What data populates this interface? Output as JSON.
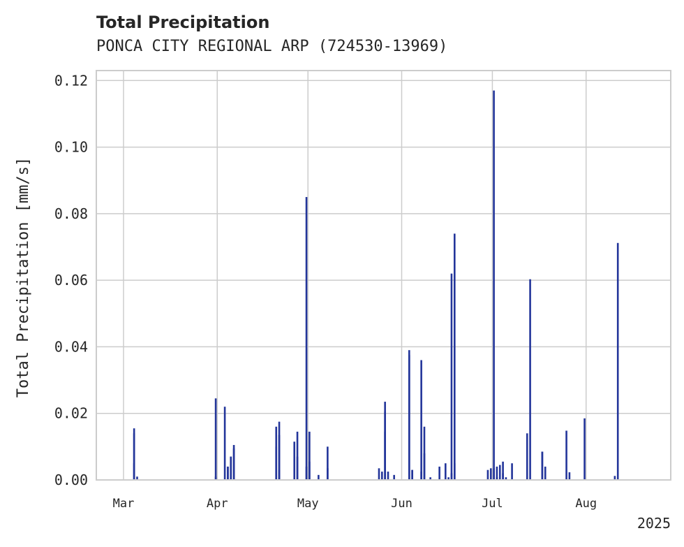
{
  "chart_data": {
    "type": "bar",
    "title": "Total Precipitation",
    "subtitle": "PONCA CITY REGIONAL ARP (724530-13969)",
    "ylabel": "Total Precipitation [mm/s]",
    "xlabel": "",
    "year_label": "2025",
    "xlim": [
      "2025-02-20",
      "2025-08-29"
    ],
    "ylim": [
      0,
      0.123
    ],
    "yticks": [
      0.0,
      0.02,
      0.04,
      0.06,
      0.08,
      0.1,
      0.12
    ],
    "ytick_labels": [
      "0.00",
      "0.02",
      "0.04",
      "0.06",
      "0.08",
      "0.10",
      "0.12"
    ],
    "xticks": [
      "2025-03-01",
      "2025-04-01",
      "2025-05-01",
      "2025-06-01",
      "2025-07-01",
      "2025-08-01"
    ],
    "xtick_labels": [
      "Mar",
      "Apr",
      "May",
      "Jun",
      "Jul",
      "Aug"
    ],
    "grid": true,
    "bar_color": "#23359a",
    "x": [
      "2025-03-04",
      "2025-03-04",
      "2025-03-04",
      "2025-03-05",
      "2025-03-31",
      "2025-03-31",
      "2025-04-03",
      "2025-04-04",
      "2025-04-04",
      "2025-04-05",
      "2025-04-05",
      "2025-04-06",
      "2025-04-06",
      "2025-04-20",
      "2025-04-20",
      "2025-04-21",
      "2025-04-21",
      "2025-04-21",
      "2025-04-26",
      "2025-04-27",
      "2025-04-27",
      "2025-04-30",
      "2025-04-30",
      "2025-05-01",
      "2025-05-01",
      "2025-05-04",
      "2025-05-07",
      "2025-05-07",
      "2025-05-24",
      "2025-05-25",
      "2025-05-26",
      "2025-05-26",
      "2025-05-26",
      "2025-05-27",
      "2025-05-29",
      "2025-06-03",
      "2025-06-03",
      "2025-06-04",
      "2025-06-04",
      "2025-06-07",
      "2025-06-07",
      "2025-06-08",
      "2025-06-08",
      "2025-06-10",
      "2025-06-13",
      "2025-06-15",
      "2025-06-16",
      "2025-06-17",
      "2025-06-17",
      "2025-06-18",
      "2025-06-18",
      "2025-06-29",
      "2025-06-30",
      "2025-07-01",
      "2025-07-01",
      "2025-07-02",
      "2025-07-02",
      "2025-07-03",
      "2025-07-04",
      "2025-07-04",
      "2025-07-05",
      "2025-07-07",
      "2025-07-12",
      "2025-07-13",
      "2025-07-17",
      "2025-07-17",
      "2025-07-18",
      "2025-07-25",
      "2025-07-26",
      "2025-07-31",
      "2025-08-10",
      "2025-08-11"
    ],
    "values": [
      0.014,
      0.0155,
      0.005,
      0.001,
      0.0245,
      0.001,
      0.022,
      0.004,
      0.004,
      0.007,
      0.007,
      0.0095,
      0.0105,
      0.016,
      0.01,
      0.0175,
      0.0135,
      0.003,
      0.0115,
      0.007,
      0.0145,
      0.085,
      0.004,
      0.0145,
      0.0055,
      0.0015,
      0.01,
      0.0035,
      0.0035,
      0.0025,
      0.0145,
      0.0235,
      0.0205,
      0.0025,
      0.0015,
      0.039,
      0.0375,
      0.003,
      0.003,
      0.036,
      0.0025,
      0.016,
      0.008,
      0.0008,
      0.004,
      0.005,
      0.0008,
      0.062,
      0.002,
      0.074,
      0.005,
      0.003,
      0.0035,
      0.0035,
      0.117,
      0.004,
      0.0008,
      0.0045,
      0.0055,
      0.002,
      0.0008,
      0.005,
      0.014,
      0.0603,
      0.0085,
      0.0085,
      0.004,
      0.0148,
      0.0023,
      0.0185,
      0.0012,
      0.0712
    ]
  }
}
